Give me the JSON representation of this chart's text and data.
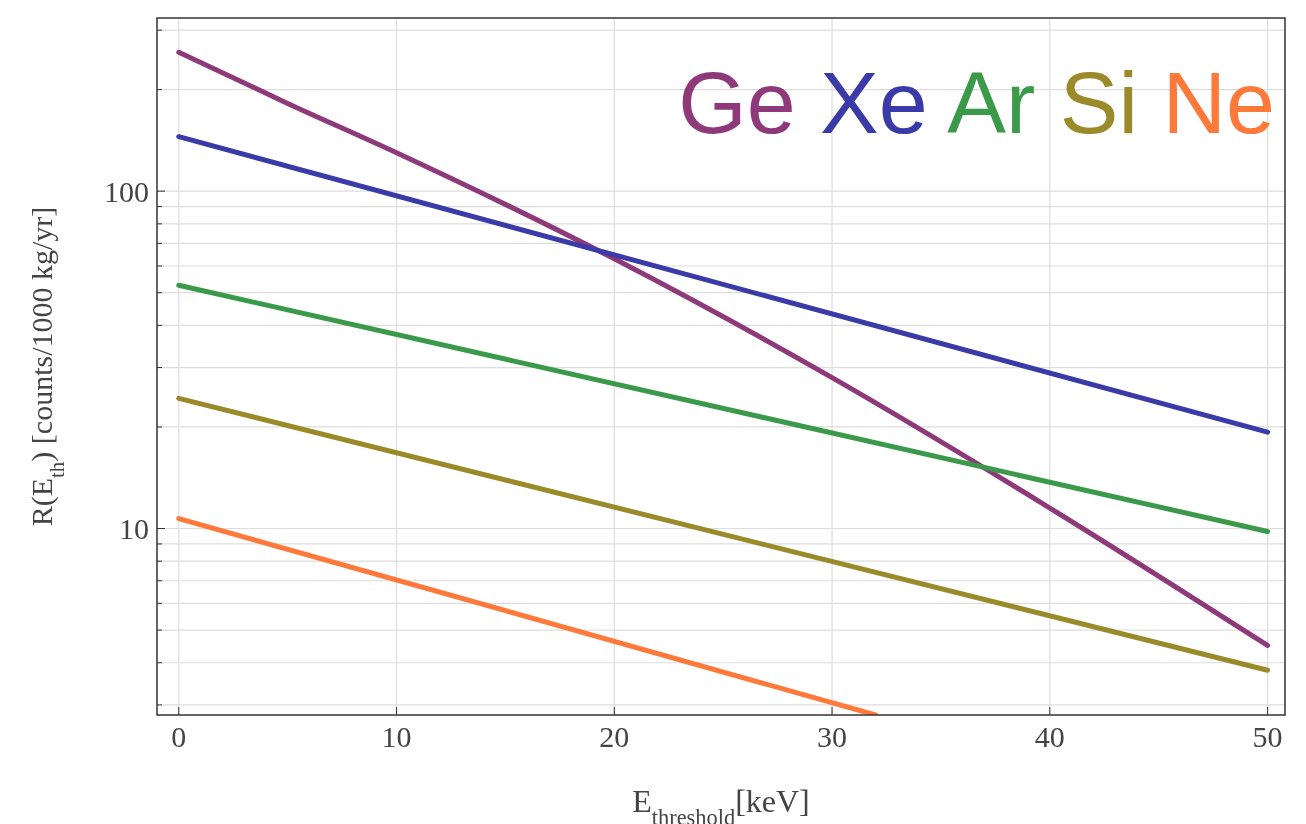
{
  "chart_data": {
    "type": "line",
    "xlabel": "E$_{threshold}$[keV]",
    "ylabel": "R(E$_{th}$) [counts/1000 kg/yr]",
    "log": "y",
    "grid": true,
    "legend": "top right",
    "xlim": [
      -1,
      50.8
    ],
    "xticks": [
      0,
      10,
      20,
      30,
      40,
      50
    ],
    "ylim": [
      2.8,
      326
    ],
    "yticks": [
      {
        "value": 3,
        "label": null
      },
      {
        "value": 4,
        "label": null
      },
      {
        "value": 5,
        "label": null
      },
      {
        "value": 6,
        "label": null
      },
      {
        "value": 7,
        "label": null
      },
      {
        "value": 8,
        "label": null
      },
      {
        "value": 9,
        "label": null
      },
      10,
      {
        "value": 20,
        "label": null
      },
      {
        "value": 30,
        "label": null
      },
      {
        "value": 40,
        "label": null
      },
      {
        "value": 50,
        "label": null
      },
      {
        "value": 60,
        "label": null
      },
      {
        "value": 70,
        "label": null
      },
      {
        "value": 80,
        "label": null
      },
      {
        "value": 90,
        "label": null
      },
      100,
      {
        "value": 200,
        "label": null
      },
      {
        "value": 300,
        "label": null
      }
    ],
    "series": [
      {
        "name": "Ge",
        "color": "#8e3a7a",
        "x": [
          0,
          5,
          10,
          20,
          30,
          40,
          50
        ],
        "values": [
          258,
          182,
          130,
          63,
          28,
          11.5,
          4.5
        ]
      },
      {
        "name": "Xe",
        "color": "#3a3aa8",
        "x": [
          0,
          50
        ],
        "values": [
          145,
          19.3
        ]
      },
      {
        "name": "Ar",
        "color": "#3a9a4a",
        "x": [
          0,
          50
        ],
        "values": [
          52.6,
          9.8
        ]
      },
      {
        "name": "Si",
        "color": "#9a8a2a",
        "x": [
          0,
          50
        ],
        "values": [
          24.3,
          3.8
        ]
      },
      {
        "name": "Ne",
        "color": "#ff7a3a",
        "x": [
          0,
          32
        ],
        "values": [
          10.7,
          2.8
        ]
      }
    ]
  }
}
